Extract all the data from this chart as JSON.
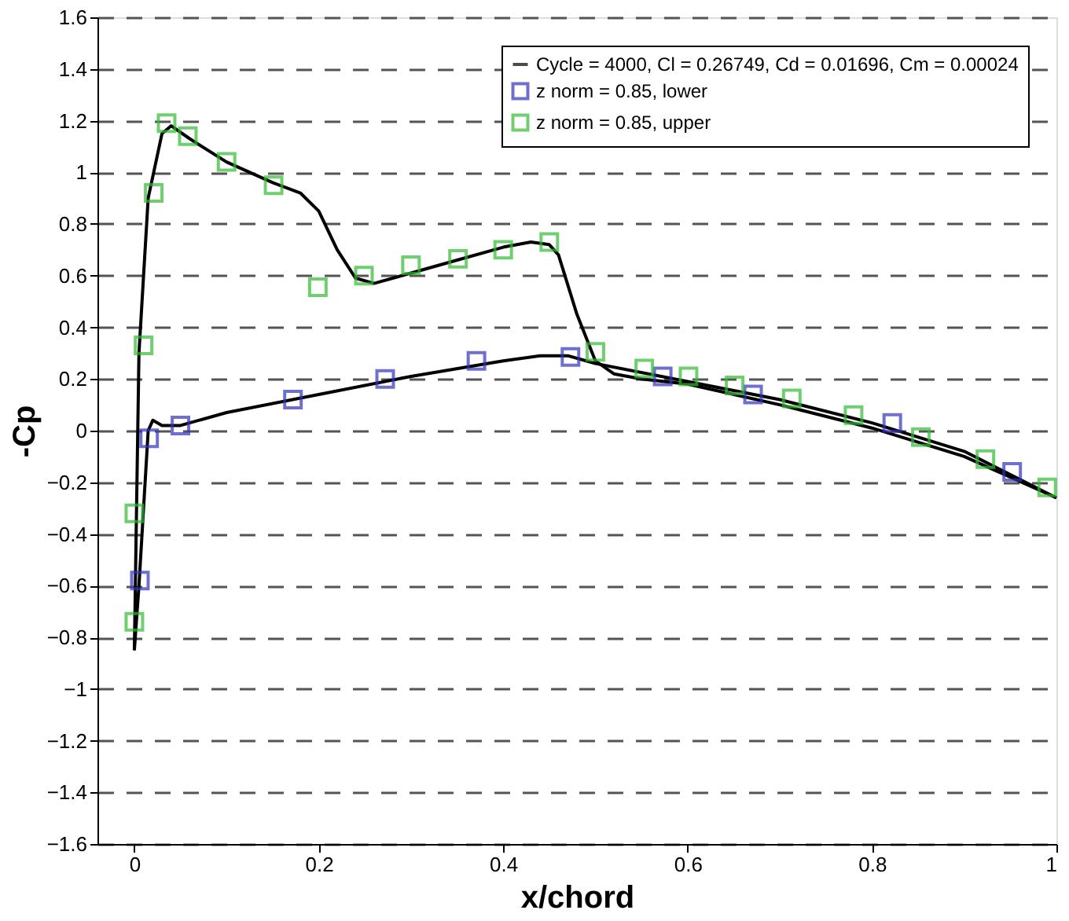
{
  "chart_data": {
    "type": "line",
    "xlabel": "x/chord",
    "ylabel": "-Cp",
    "xlim": [
      -0.04,
      1.0
    ],
    "xticks": [
      0,
      0.2,
      0.4,
      0.6,
      0.8,
      1
    ],
    "ylim": [
      -1.6,
      1.6
    ],
    "yticks": [
      -1.6,
      -1.4,
      -1.2,
      -1,
      -0.8,
      -0.6,
      -0.4,
      -0.2,
      0,
      0.2,
      0.4,
      0.6,
      0.8,
      1,
      1.2,
      1.4,
      1.6
    ],
    "grid": "y",
    "legend": "top right",
    "line_style": "solid",
    "series": [
      {
        "name": "Cycle = 4000, Cl = 0.26749, Cd = 0.01696, Cm = 0.00024",
        "type": "line",
        "color": "#000000",
        "marker": "none",
        "x": [
          0.0,
          0.005,
          0.015,
          0.03,
          0.04,
          0.06,
          0.1,
          0.15,
          0.18,
          0.2,
          0.22,
          0.24,
          0.26,
          0.3,
          0.35,
          0.4,
          0.43,
          0.45,
          0.46,
          0.48,
          0.5,
          0.52,
          0.55,
          0.6,
          0.7,
          0.8,
          0.9,
          1.0
        ],
        "values": [
          -0.85,
          0.3,
          0.9,
          1.15,
          1.18,
          1.13,
          1.04,
          0.96,
          0.92,
          0.85,
          0.7,
          0.59,
          0.57,
          0.61,
          0.66,
          0.71,
          0.73,
          0.72,
          0.68,
          0.45,
          0.27,
          0.22,
          0.2,
          0.18,
          0.1,
          0.01,
          -0.1,
          -0.26
        ]
      },
      {
        "color": "#000000",
        "marker": "none",
        "x": [
          0.0,
          0.005,
          0.01,
          0.015,
          0.02,
          0.03,
          0.05,
          0.1,
          0.2,
          0.3,
          0.4,
          0.44,
          0.47,
          0.5,
          0.6,
          0.7,
          0.8,
          0.9,
          1.0
        ],
        "values": [
          -0.85,
          -0.6,
          -0.3,
          0.0,
          0.04,
          0.02,
          0.02,
          0.07,
          0.14,
          0.21,
          0.27,
          0.29,
          0.29,
          0.26,
          0.19,
          0.12,
          0.03,
          -0.08,
          -0.26
        ]
      },
      {
        "name": "z norm = 0.85, lower",
        "type": "scatter",
        "color": "#3333bb",
        "marker": "square",
        "x": [
          0.006,
          0.016,
          0.05,
          0.172,
          0.272,
          0.371,
          0.473,
          0.573,
          0.671,
          0.822,
          0.952
        ],
        "values": [
          -0.58,
          -0.03,
          0.02,
          0.12,
          0.2,
          0.27,
          0.285,
          0.21,
          0.14,
          0.03,
          -0.16
        ]
      },
      {
        "name": "z norm = 0.85, upper",
        "type": "scatter",
        "color": "#33bb33",
        "marker": "square",
        "x": [
          0.0,
          0.0,
          0.01,
          0.021,
          0.035,
          0.058,
          0.1,
          0.151,
          0.199,
          0.249,
          0.3,
          0.351,
          0.4,
          0.45,
          0.5,
          0.553,
          0.601,
          0.651,
          0.713,
          0.78,
          0.853,
          0.923,
          0.99
        ],
        "values": [
          -0.74,
          -0.32,
          0.33,
          0.92,
          1.19,
          1.14,
          1.04,
          0.95,
          0.555,
          0.6,
          0.64,
          0.665,
          0.7,
          0.73,
          0.305,
          0.24,
          0.21,
          0.175,
          0.125,
          0.06,
          -0.025,
          -0.11,
          -0.22
        ]
      }
    ]
  }
}
